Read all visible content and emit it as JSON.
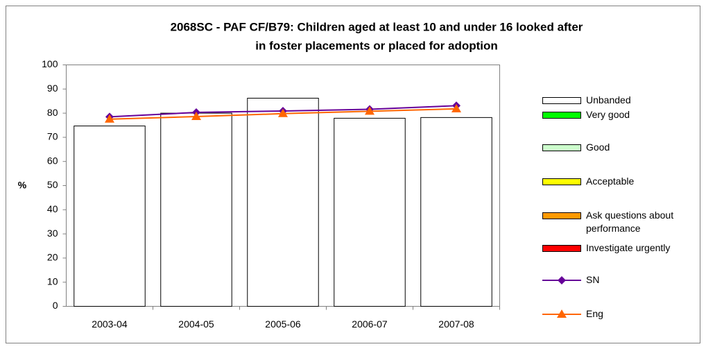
{
  "chart_data": {
    "type": "bar",
    "title": [
      "2068SC - PAF CF/B79: Children aged at least 10 and under 16 looked after",
      "in foster placements or placed for adoption"
    ],
    "y_label": "%",
    "categories": [
      "2003-04",
      "2004-05",
      "2005-06",
      "2006-07",
      "2007-08"
    ],
    "series": [
      {
        "name": "Unbanded",
        "type": "bar",
        "color": "#ffffff",
        "values": [
          74.7,
          80,
          86.2,
          77.9,
          78.2
        ]
      },
      {
        "name": "Very good",
        "type": "bar",
        "color": "#00ff00",
        "values": [
          null,
          null,
          null,
          null,
          null
        ]
      },
      {
        "name": "Good",
        "type": "bar",
        "color": "#ccffcc",
        "values": [
          null,
          null,
          null,
          null,
          null
        ]
      },
      {
        "name": "Acceptable",
        "type": "bar",
        "color": "#ffff00",
        "values": [
          null,
          null,
          null,
          null,
          null
        ]
      },
      {
        "name": "Ask questions about performance",
        "type": "bar",
        "color": "#ff9900",
        "values": [
          null,
          null,
          null,
          null,
          null
        ]
      },
      {
        "name": "Investigate urgently",
        "type": "bar",
        "color": "#ff0000",
        "values": [
          null,
          null,
          null,
          null,
          null
        ]
      },
      {
        "name": "SN",
        "type": "line",
        "marker": "diamond",
        "color": "#660099",
        "values": [
          78.5,
          80.3,
          80.9,
          81.6,
          83.1
        ]
      },
      {
        "name": "Eng",
        "type": "line",
        "marker": "triangle",
        "color": "#ff6600",
        "values": [
          77.5,
          78.6,
          79.8,
          80.8,
          81.8
        ]
      }
    ],
    "ylim": [
      0,
      100
    ],
    "yticks": [
      0,
      10,
      20,
      30,
      40,
      50,
      60,
      70,
      80,
      90,
      100
    ],
    "grid": false
  }
}
